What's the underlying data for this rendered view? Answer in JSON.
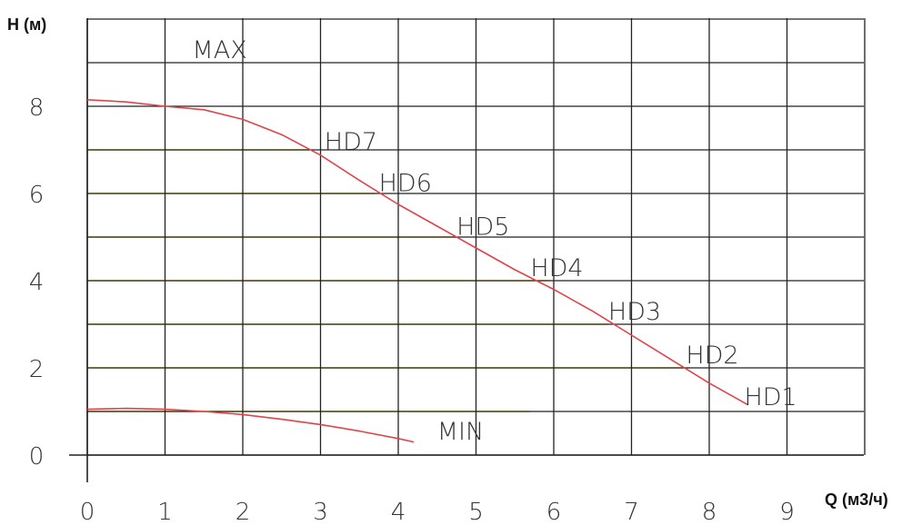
{
  "chart_data": {
    "type": "line",
    "ylabel": "H (м)",
    "xlabel": "Q (м3/ч)",
    "xlim": [
      0,
      10
    ],
    "ylim": [
      0,
      10
    ],
    "x_ticks": [
      "0",
      "1",
      "2",
      "3",
      "4",
      "5",
      "6",
      "7",
      "8",
      "9"
    ],
    "y_ticks": [
      "0",
      "2",
      "4",
      "6",
      "8"
    ],
    "grid": true,
    "colors": {
      "curve": "#e0434b",
      "speed_line": "#f0e08a",
      "grid": "#222222"
    },
    "series": [
      {
        "name": "MAX",
        "x": [
          0,
          0.5,
          1,
          1.5,
          2,
          2.5,
          3,
          3.5,
          4,
          4.5,
          5,
          5.5,
          6,
          6.5,
          7,
          7.5,
          8,
          8.5
        ],
        "y": [
          8.15,
          8.1,
          8.0,
          7.92,
          7.7,
          7.35,
          6.88,
          6.3,
          5.75,
          5.25,
          4.75,
          4.25,
          3.8,
          3.3,
          2.75,
          2.2,
          1.65,
          1.15
        ]
      },
      {
        "name": "MIN",
        "x": [
          0,
          0.5,
          1,
          1.5,
          2,
          2.5,
          3,
          3.5,
          4,
          4.2
        ],
        "y": [
          1.05,
          1.07,
          1.05,
          1.0,
          0.93,
          0.82,
          0.7,
          0.55,
          0.38,
          0.3
        ]
      }
    ],
    "speed_lines": [
      {
        "name": "HD7",
        "h": 7,
        "x_end": 2.85
      },
      {
        "name": "HD6",
        "h": 6,
        "x_end": 3.7
      },
      {
        "name": "HD5",
        "h": 5,
        "x_end": 4.75
      },
      {
        "name": "HD4",
        "h": 4,
        "x_end": 5.95
      },
      {
        "name": "HD3",
        "h": 3,
        "x_end": 6.7
      },
      {
        "name": "HD2",
        "h": 2,
        "x_end": 7.75
      },
      {
        "name": "HD1",
        "h": 1,
        "x_end": 5.7
      }
    ],
    "labels": [
      "MAX",
      "MIN",
      "HD7",
      "HD6",
      "HD5",
      "HD4",
      "HD3",
      "HD2",
      "HD1"
    ]
  }
}
